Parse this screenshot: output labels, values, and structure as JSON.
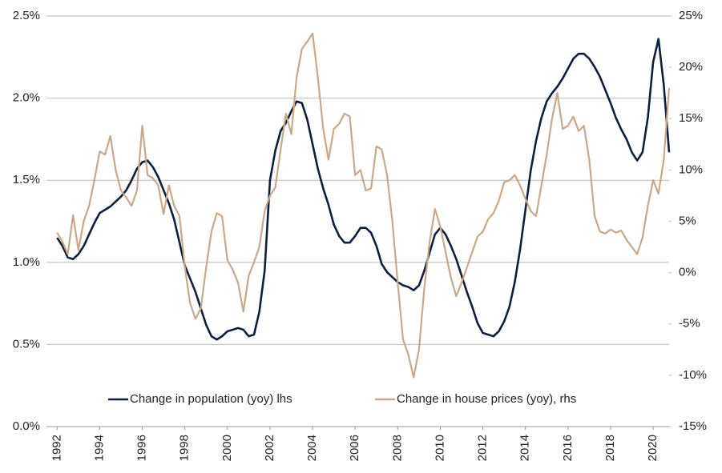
{
  "chart_data": {
    "type": "line",
    "x": [
      1992,
      1992.25,
      1992.5,
      1992.75,
      1993,
      1993.25,
      1993.5,
      1993.75,
      1994,
      1994.25,
      1994.5,
      1994.75,
      1995,
      1995.25,
      1995.5,
      1995.75,
      1996,
      1996.25,
      1996.5,
      1996.75,
      1997,
      1997.25,
      1997.5,
      1997.75,
      1998,
      1998.25,
      1998.5,
      1998.75,
      1999,
      1999.25,
      1999.5,
      1999.75,
      2000,
      2000.25,
      2000.5,
      2000.75,
      2001,
      2001.25,
      2001.5,
      2001.75,
      2002,
      2002.25,
      2002.5,
      2002.75,
      2003,
      2003.25,
      2003.5,
      2003.75,
      2004,
      2004.25,
      2004.5,
      2004.75,
      2005,
      2005.25,
      2005.5,
      2005.75,
      2006,
      2006.25,
      2006.5,
      2006.75,
      2007,
      2007.25,
      2007.5,
      2007.75,
      2008,
      2008.25,
      2008.5,
      2008.75,
      2009,
      2009.25,
      2009.5,
      2009.75,
      2010,
      2010.25,
      2010.5,
      2010.75,
      2011,
      2011.25,
      2011.5,
      2011.75,
      2012,
      2012.25,
      2012.5,
      2012.75,
      2013,
      2013.25,
      2013.5,
      2013.75,
      2014,
      2014.25,
      2014.5,
      2014.75,
      2015,
      2015.25,
      2015.5,
      2015.75,
      2016,
      2016.25,
      2016.5,
      2016.75,
      2017,
      2017.25,
      2017.5,
      2017.75,
      2018,
      2018.25,
      2018.5,
      2018.75,
      2019,
      2019.25,
      2019.5,
      2019.75,
      2020,
      2020.25,
      2020.5,
      2020.75
    ],
    "series": [
      {
        "name": "Change in population (yoy) lhs",
        "color": "#0d1f3c",
        "values": [
          1.15,
          1.1,
          1.03,
          1.02,
          1.05,
          1.1,
          1.17,
          1.24,
          1.3,
          1.32,
          1.34,
          1.37,
          1.4,
          1.44,
          1.5,
          1.57,
          1.61,
          1.62,
          1.58,
          1.52,
          1.44,
          1.36,
          1.26,
          1.12,
          0.98,
          0.9,
          0.82,
          0.72,
          0.62,
          0.55,
          0.53,
          0.55,
          0.58,
          0.59,
          0.6,
          0.59,
          0.55,
          0.56,
          0.7,
          0.95,
          1.5,
          1.68,
          1.8,
          1.85,
          1.92,
          1.98,
          1.97,
          1.87,
          1.72,
          1.57,
          1.45,
          1.35,
          1.23,
          1.16,
          1.12,
          1.12,
          1.16,
          1.21,
          1.21,
          1.18,
          1.1,
          0.99,
          0.94,
          0.91,
          0.88,
          0.86,
          0.85,
          0.83,
          0.86,
          0.95,
          1.06,
          1.17,
          1.21,
          1.17,
          1.1,
          1.02,
          0.92,
          0.82,
          0.73,
          0.63,
          0.57,
          0.56,
          0.55,
          0.58,
          0.64,
          0.73,
          0.88,
          1.08,
          1.32,
          1.56,
          1.74,
          1.88,
          1.98,
          2.03,
          2.07,
          2.12,
          2.18,
          2.24,
          2.27,
          2.27,
          2.24,
          2.19,
          2.13,
          2.05,
          1.97,
          1.88,
          1.81,
          1.75,
          1.67,
          1.62,
          1.67,
          1.88,
          2.22,
          2.36,
          2.08,
          1.67
        ]
      },
      {
        "name": "Change in house prices (yoy), rhs",
        "color": "#c9a88a",
        "axis": "y2",
        "values": [
          3.9,
          3.0,
          1.8,
          5.6,
          2.2,
          5.0,
          6.5,
          9.0,
          11.8,
          11.5,
          13.3,
          10.0,
          8.0,
          7.3,
          6.5,
          8.0,
          14.3,
          9.5,
          9.2,
          8.5,
          5.7,
          8.5,
          6.5,
          5.5,
          0.5,
          -3.0,
          -4.5,
          -3.5,
          0.5,
          4.0,
          5.8,
          5.5,
          1.2,
          0.3,
          -1.0,
          -3.8,
          -0.3,
          1.0,
          2.5,
          6.0,
          7.5,
          8.3,
          12.0,
          15.5,
          13.5,
          19.0,
          21.8,
          22.5,
          23.3,
          19.0,
          14.0,
          11.0,
          14.0,
          14.5,
          15.5,
          15.2,
          9.5,
          10.0,
          8.0,
          8.2,
          12.3,
          12.0,
          9.5,
          5.0,
          -1.0,
          -6.5,
          -8.0,
          -10.2,
          -7.5,
          -1.5,
          3.0,
          6.2,
          4.5,
          2.0,
          -0.5,
          -2.3,
          -1.0,
          0.5,
          2.0,
          3.5,
          4.0,
          5.2,
          5.8,
          7.0,
          8.8,
          9.0,
          9.5,
          8.5,
          7.2,
          6.0,
          5.5,
          8.5,
          11.5,
          15.0,
          17.5,
          14.0,
          14.3,
          15.2,
          13.8,
          14.3,
          11.0,
          5.5,
          4.0,
          3.8,
          4.2,
          3.9,
          4.1,
          3.2,
          2.5,
          1.8,
          3.4,
          6.5,
          9.0,
          7.7,
          11.0,
          18.0
        ]
      }
    ],
    "xlim": [
      1991.5,
      2020.75
    ],
    "xticks": [
      1992,
      1994,
      1996,
      1998,
      2000,
      2002,
      2004,
      2006,
      2008,
      2010,
      2012,
      2014,
      2016,
      2018,
      2020
    ],
    "ylim": [
      0,
      2.5
    ],
    "yticks": [
      {
        "value": 0,
        "label": "0.0%"
      },
      {
        "value": 0.5,
        "label": "0.5%"
      },
      {
        "value": 1,
        "label": "1.0%"
      },
      {
        "value": 1.5,
        "label": "1.5%"
      },
      {
        "value": 2,
        "label": "2.0%"
      },
      {
        "value": 2.5,
        "label": "2.5%"
      }
    ],
    "y2lim": [
      -15,
      25
    ],
    "y2ticks": [
      {
        "value": -15,
        "label": "-15%"
      },
      {
        "value": -10,
        "label": "-10%"
      },
      {
        "value": -5,
        "label": "-5%"
      },
      {
        "value": 0,
        "label": "0%"
      },
      {
        "value": 5,
        "label": "5%"
      },
      {
        "value": 10,
        "label": "10%"
      },
      {
        "value": 15,
        "label": "15%"
      },
      {
        "value": 20,
        "label": "20%"
      },
      {
        "value": 25,
        "label": "25%"
      }
    ],
    "grid": true,
    "legend": "lower center"
  }
}
